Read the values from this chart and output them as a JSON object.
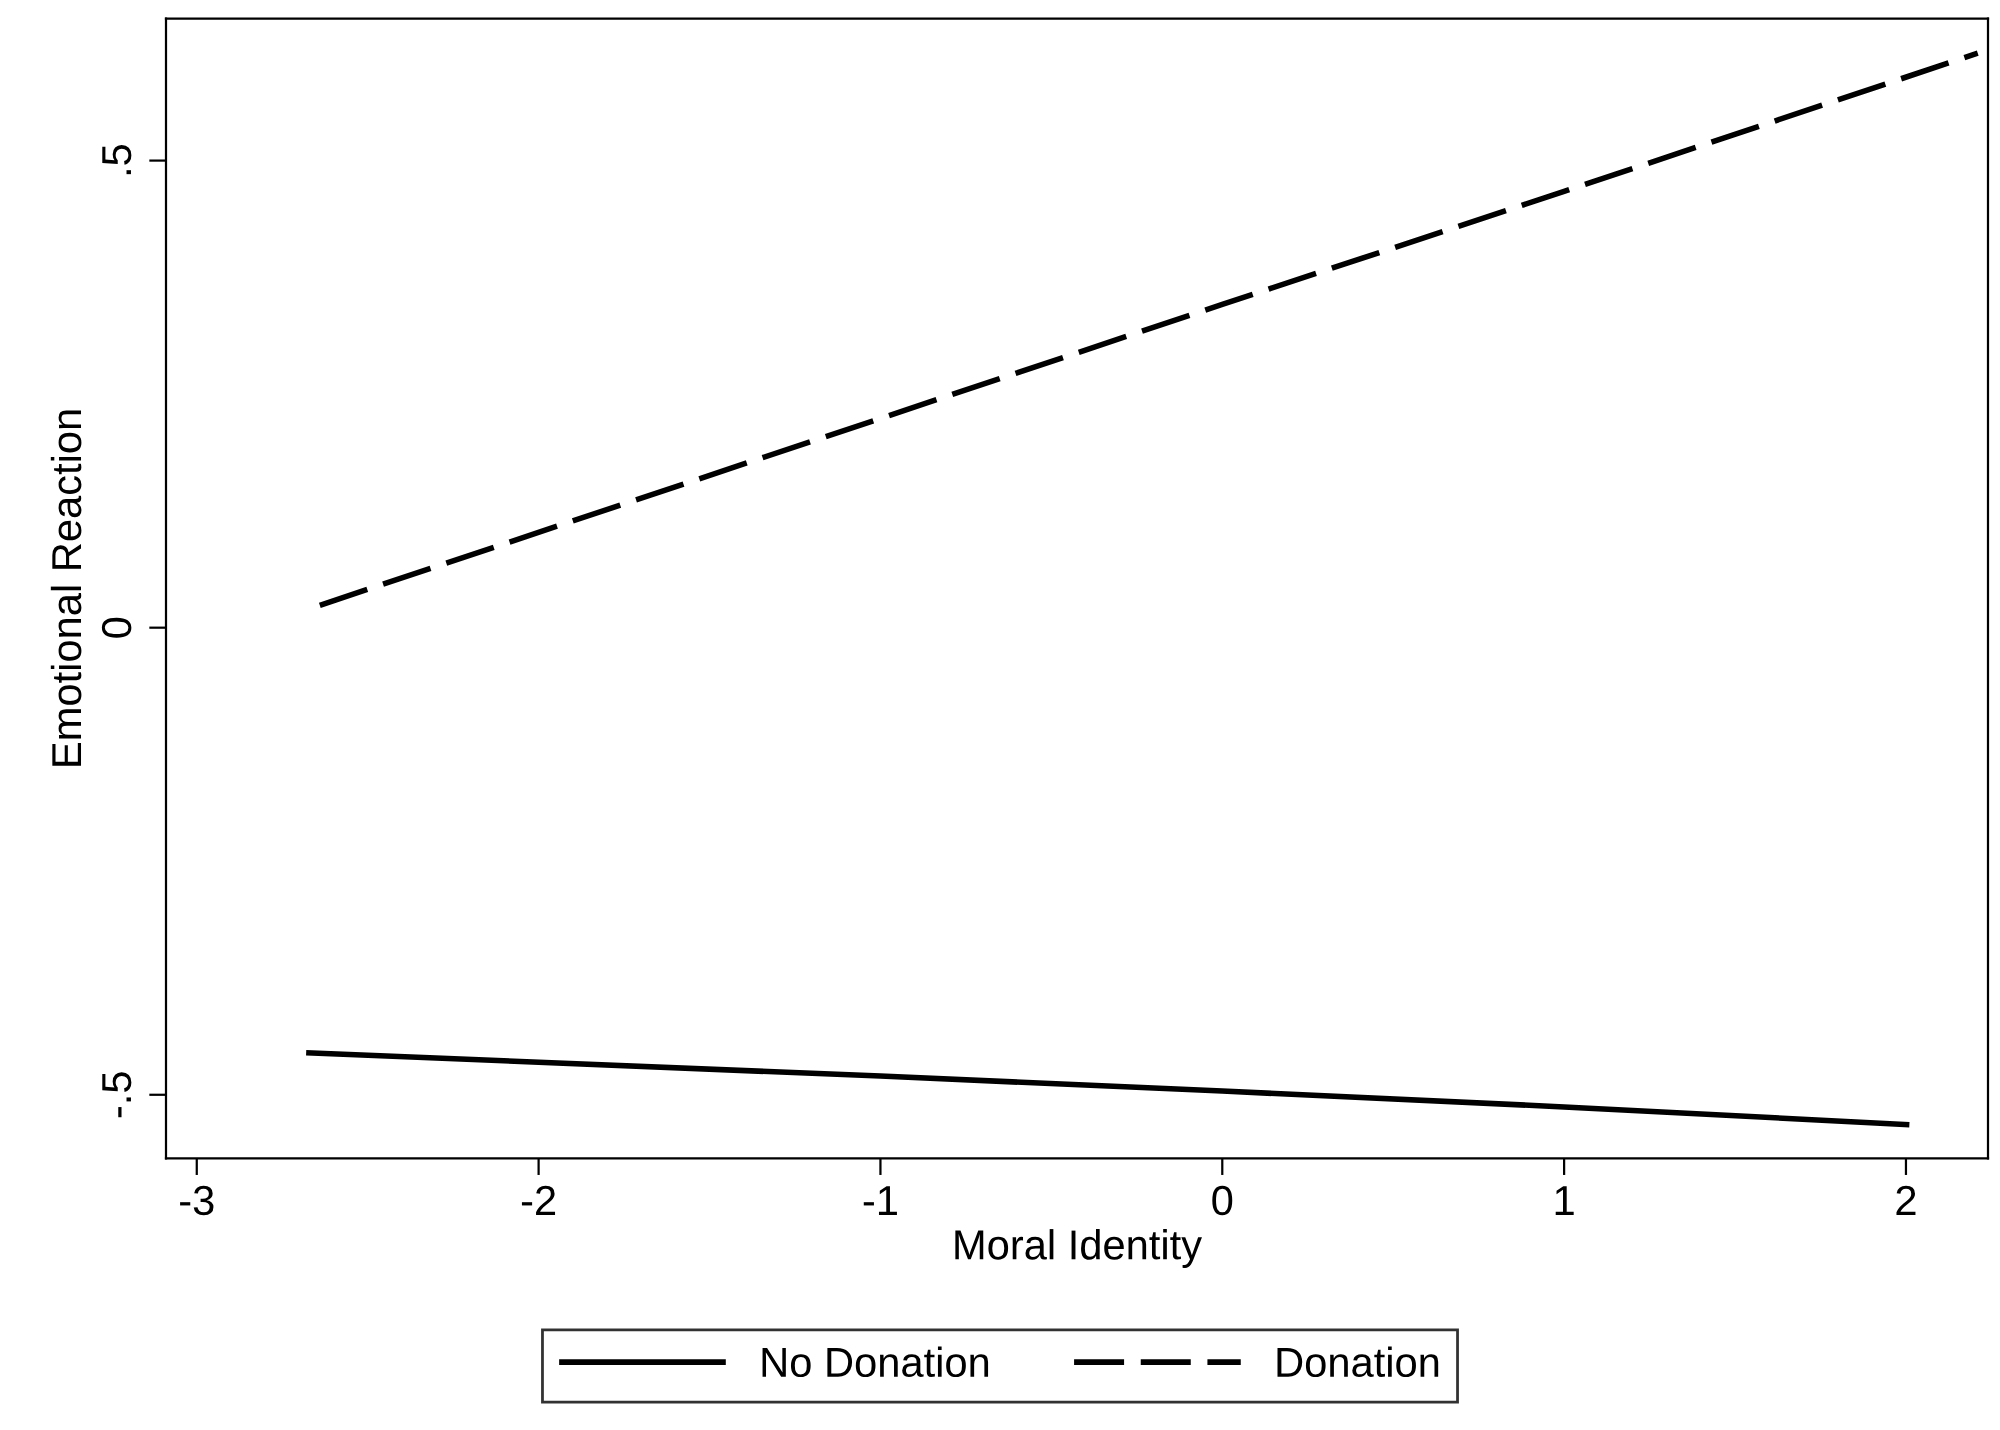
{
  "chart_data": {
    "type": "line",
    "xlabel": "Moral Identity",
    "ylabel": "Emotional Reaction",
    "xlim": [
      -3.09,
      2.24
    ],
    "xticks": [
      -3,
      -2,
      -1,
      0,
      1,
      2
    ],
    "ylim": [
      -0.568,
      0.652
    ],
    "yticks": [
      {
        "value": -0.5,
        "label": "-.5"
      },
      0,
      {
        "value": 0.5,
        "label": ".5"
      }
    ],
    "grid": false,
    "legend": "bottom",
    "series": [
      {
        "name": "No Donation",
        "color": "#000000",
        "line_style": "solid",
        "x": [
          -2.68,
          -1,
          0,
          1,
          2.01
        ],
        "values": [
          -0.455,
          -0.48,
          -0.496,
          -0.513,
          -0.532
        ]
      },
      {
        "name": "Donation",
        "color": "#000000",
        "line_style": "dashed",
        "x": [
          -2.64,
          -1,
          0,
          1,
          2.21
        ],
        "values": [
          0.024,
          0.224,
          0.346,
          0.467,
          0.615
        ]
      }
    ]
  }
}
